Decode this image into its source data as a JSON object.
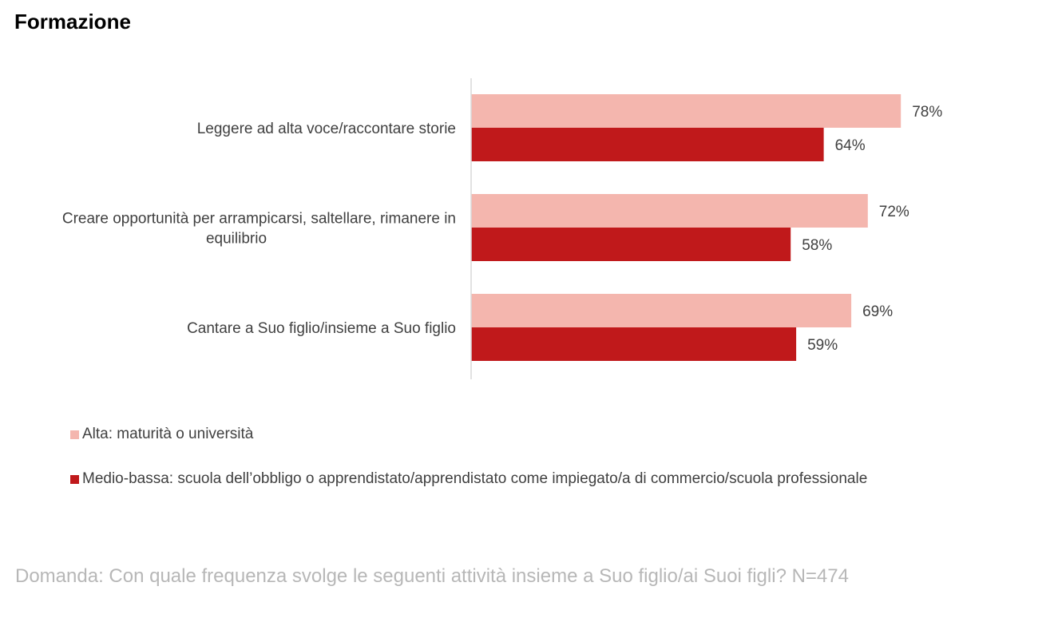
{
  "title": "Formazione",
  "chart_data": {
    "type": "bar",
    "orientation": "horizontal",
    "categories": [
      "Leggere ad alta voce/raccontare storie",
      "Creare opportunità per arrampicarsi, saltellare, rimanere in equilibrio",
      "Cantare a Suo figlio/insieme a Suo figlio"
    ],
    "category_lines": [
      [
        "Leggere ad alta voce/raccontare storie"
      ],
      [
        "Creare opportunità per arrampicarsi, saltellare, rimanere in",
        "equilibrio"
      ],
      [
        "Cantare a Suo figlio/insieme a Suo figlio"
      ]
    ],
    "series": [
      {
        "name": "Alta: maturità o università",
        "values": [
          78,
          72,
          69
        ],
        "labels": [
          "78%",
          "72%",
          "69%"
        ],
        "color": "#f4b6ae"
      },
      {
        "name": "Medio-bassa: scuola dell’obbligo o apprendistato/apprendistato come impiegato/a di commercio/scuola professionale",
        "values": [
          64,
          58,
          59
        ],
        "labels": [
          "64%",
          "58%",
          "59%"
        ],
        "color": "#c0191b"
      }
    ],
    "unit": "%",
    "xlim": [
      0,
      100
    ],
    "grid": false,
    "legend_position": "bottom-left"
  },
  "footnote": "Domanda: Con quale frequenza svolge le seguenti attività insieme a Suo figlio/ai Suoi figli? N=474",
  "colors": {
    "axis": "#d9d9d9",
    "category_text": "#404040",
    "value_text": "#404040",
    "footnote_text": "#b7b7b7"
  }
}
